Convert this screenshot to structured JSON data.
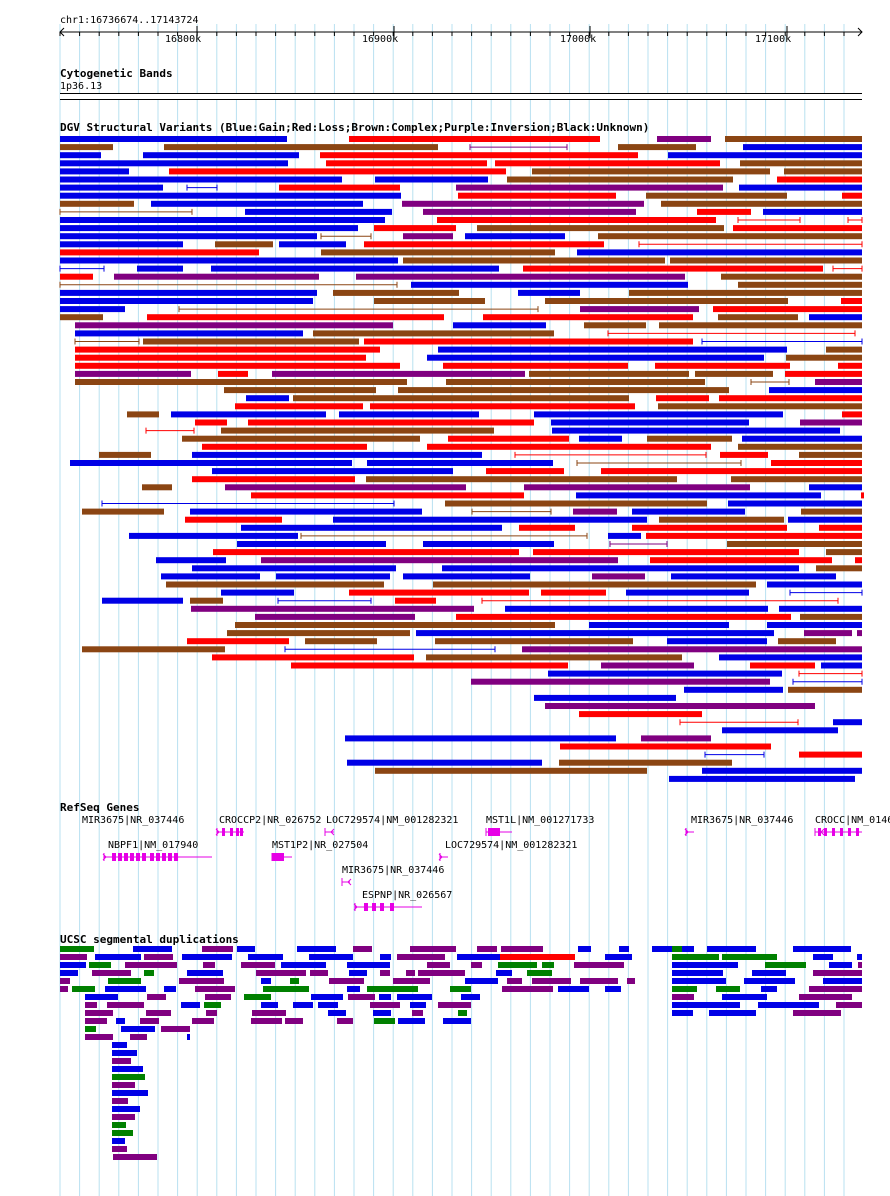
{
  "header": {
    "coordinates": "chr1:16736674..17143724"
  },
  "ruler": {
    "ticks": [
      "16800k",
      "16900k",
      "17000k",
      "17100k"
    ]
  },
  "cytoband": {
    "title": "Cytogenetic Bands",
    "band": "1p36.13"
  },
  "dgv": {
    "title": "DGV Structural Variants (Blue:Gain;Red:Loss;Brown:Complex;Purple:Inversion;Black:Unknown)",
    "colors": {
      "gain": "#0000e6",
      "loss": "#ff0000",
      "complex": "#8b4513",
      "inversion": "#800080"
    }
  },
  "refseq": {
    "title": "RefSeq Genes",
    "color": "#e600e6",
    "genes": [
      "MIR3675|NR_037446",
      "CROCCP2|NR_026752",
      "LOC729574|NM_001282321",
      "MST1L|NM_001271733",
      "MIR3675|NR_037446",
      "CROCC|NM_0146",
      "NBPF1|NM_017940",
      "MST1P2|NR_027504",
      "LOC729574|NM_001282321",
      "MIR3675|NR_037446",
      "ESPNP|NR_026567"
    ]
  },
  "segdups": {
    "title": "UCSC segmental duplications",
    "colors": {
      "blue": "#0000e6",
      "green": "#008000",
      "purple": "#800080",
      "red": "#ff0000"
    }
  }
}
